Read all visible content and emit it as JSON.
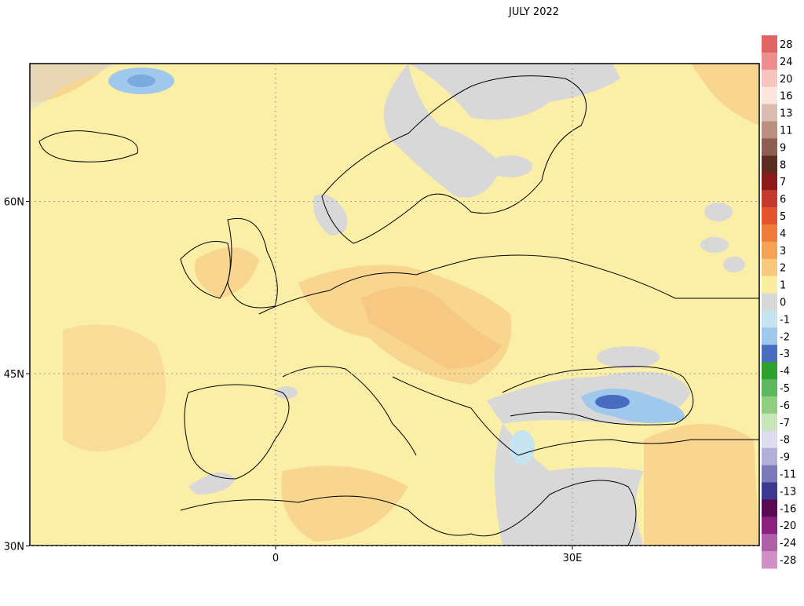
{
  "title": "JULY 2022",
  "lat_lines": [
    {
      "value": 60,
      "label": "60N"
    },
    {
      "value": 45,
      "label": "45N"
    },
    {
      "value": 30,
      "label": "30N"
    }
  ],
  "lon_lines": [
    {
      "value": 0,
      "label": "0"
    },
    {
      "value": 30,
      "label": "30E"
    }
  ],
  "legend": {
    "items": [
      {
        "value": 28,
        "color": "#e06464"
      },
      {
        "value": 24,
        "color": "#ee8e8e"
      },
      {
        "value": 20,
        "color": "#f8c4c0"
      },
      {
        "value": 16,
        "color": "#fbe6de"
      },
      {
        "value": 13,
        "color": "#dcbcb0"
      },
      {
        "value": 11,
        "color": "#bc9080"
      },
      {
        "value": 9,
        "color": "#8e5e50"
      },
      {
        "value": 8,
        "color": "#5c2c20"
      },
      {
        "value": 7,
        "color": "#8c1c1c"
      },
      {
        "value": 6,
        "color": "#c43a2c"
      },
      {
        "value": 5,
        "color": "#e4542e"
      },
      {
        "value": 4,
        "color": "#f07c3c"
      },
      {
        "value": 3,
        "color": "#f5a456"
      },
      {
        "value": 2,
        "color": "#f8c87c"
      },
      {
        "value": 1,
        "color": "#fbec9e"
      },
      {
        "value": 0,
        "color": "#d8d8d8"
      },
      {
        "value": -1,
        "color": "#c6e4f0"
      },
      {
        "value": -2,
        "color": "#a0c8ec"
      },
      {
        "value": -3,
        "color": "#4a6cc0"
      },
      {
        "value": -4,
        "color": "#2ea02e"
      },
      {
        "value": -5,
        "color": "#5cb85c"
      },
      {
        "value": -6,
        "color": "#90cf80"
      },
      {
        "value": -7,
        "color": "#c8e6b8"
      },
      {
        "value": -8,
        "color": "#dcdcee"
      },
      {
        "value": -9,
        "color": "#b0b0d8"
      },
      {
        "value": -11,
        "color": "#7a7ab8"
      },
      {
        "value": -13,
        "color": "#3a3a90"
      },
      {
        "value": -16,
        "color": "#5a0a50"
      },
      {
        "value": -20,
        "color": "#8a2080"
      },
      {
        "value": -24,
        "color": "#b060a8"
      },
      {
        "value": -28,
        "color": "#d090c8"
      }
    ]
  }
}
